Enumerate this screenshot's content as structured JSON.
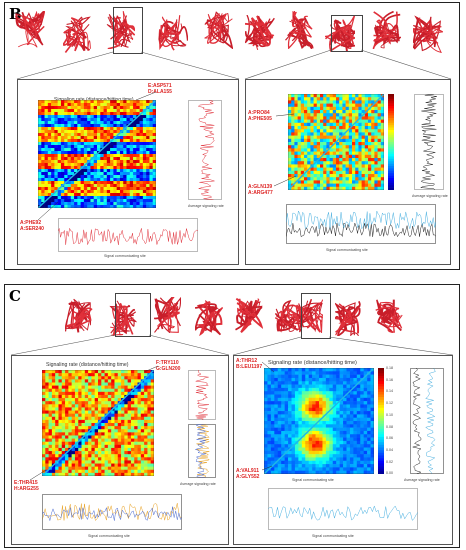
{
  "panel_b": {
    "label": "B",
    "left": {
      "title": "Signaling rate (distance/hitting time)",
      "top_labels": [
        "E:ASP571",
        "D:ALA155"
      ],
      "bottom_labels": [
        "A:PHE92",
        "A:SER240"
      ],
      "side_ylabel": "Signal receiving site",
      "side_xlabel": "Average signaling rate",
      "bottom_ylabel": "Average signaling rate",
      "bottom_xlabel": "Signal communicating site"
    },
    "right": {
      "top_labels": [
        "A:PRO84",
        "A:PHE505"
      ],
      "bottom_labels": [
        "A:GLN139",
        "A:ARG477"
      ],
      "side_ylabel": "Signal receiving site",
      "side_xlabel": "Average signaling rate",
      "bottom_ylabel": "Average signaling rate",
      "bottom_xlabel": "Signal communicating site"
    }
  },
  "panel_c": {
    "label": "C",
    "left": {
      "title": "Signaling rate (distance/hitting time)",
      "top_labels": [
        "F:TRY110",
        "G:GLN200"
      ],
      "bottom_labels": [
        "E:THR415",
        "H:ARG255"
      ],
      "side_ylabel": "Signal receiving site",
      "side_xlabel": "Average signaling rate",
      "bottom_ylabel": "Average signaling rate",
      "bottom_xlabel": "Signal communicating site"
    },
    "right": {
      "title": "Signaling rate (distance/hitting time)",
      "top_labels": [
        "A:THR12",
        "B:LEU1197"
      ],
      "bottom_labels": [
        "A:VAL911",
        "A:GLY552"
      ],
      "heatmap_ylabel": "Signal receiving site",
      "heatmap_xlabel": "Signal communicating site",
      "colorbar_ticks": [
        "0.18",
        "0.16",
        "0.14",
        "0.12",
        "0.10",
        "0.08",
        "0.06",
        "0.04",
        "0.02",
        "0.00"
      ],
      "side_ylabel": "Signal receiving site",
      "side_xlabel": "Average signaling rate",
      "bottom_ylabel": "Average signaling rate",
      "bottom_xlabel": "Signal communicating site"
    }
  }
}
